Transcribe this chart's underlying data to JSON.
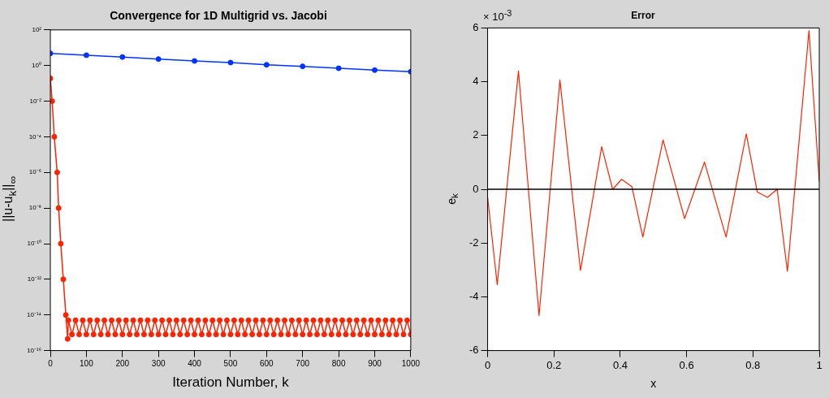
{
  "chart_data": [
    {
      "type": "line",
      "title": "Convergence for 1D Multigrid vs. Jacobi",
      "xlabel": "Iteration Number, k",
      "ylabel": "||u-u$_{k}$||$_{∞}$",
      "log": "y",
      "marker": "circle",
      "grid": false,
      "xlim": [
        0,
        1000
      ],
      "xticks": [
        0,
        100,
        200,
        300,
        400,
        500,
        600,
        700,
        800,
        900,
        1000
      ],
      "ylim": [
        1e-16,
        100
      ],
      "yticks": [
        {
          "value": 1e-16,
          "label": "10⁻¹⁶"
        },
        {
          "value": 1e-14,
          "label": "10⁻¹⁴"
        },
        {
          "value": 1e-12,
          "label": "10⁻¹²"
        },
        {
          "value": 1e-10,
          "label": "10⁻¹⁰"
        },
        {
          "value": 1e-08,
          "label": "10⁻⁸"
        },
        {
          "value": 1e-06,
          "label": "10⁻⁶"
        },
        {
          "value": 0.0001,
          "label": "10⁻⁴"
        },
        {
          "value": 0.01,
          "label": "10⁻²"
        },
        {
          "value": 1,
          "label": "10⁰"
        },
        {
          "value": 100,
          "label": "10²"
        }
      ],
      "series": [
        {
          "color": "#0033ff",
          "x": [
            0,
            100,
            200,
            300,
            400,
            500,
            600,
            700,
            800,
            900,
            1000
          ],
          "values": [
            4.8,
            3.8,
            3.0,
            2.3,
            1.8,
            1.46,
            1.1,
            0.9,
            0.7,
            0.55,
            0.45
          ]
        },
        {
          "color": "#ff2200",
          "x": [
            0,
            5,
            11,
            19,
            23,
            29,
            36,
            43,
            48,
            50,
            60,
            70,
            80,
            90,
            100,
            110,
            120,
            130,
            140,
            150,
            160,
            170,
            180,
            190,
            200,
            210,
            220,
            230,
            240,
            250,
            260,
            270,
            280,
            290,
            300,
            310,
            320,
            330,
            340,
            350,
            360,
            370,
            380,
            390,
            400,
            410,
            420,
            430,
            440,
            450,
            460,
            470,
            480,
            490,
            500,
            510,
            520,
            530,
            540,
            550,
            560,
            570,
            580,
            590,
            600,
            610,
            620,
            630,
            640,
            650,
            660,
            670,
            680,
            690,
            700,
            710,
            720,
            730,
            740,
            750,
            760,
            770,
            780,
            790,
            800,
            810,
            820,
            830,
            840,
            850,
            860,
            870,
            880,
            890,
            900,
            910,
            920,
            930,
            940,
            950,
            960,
            970,
            980,
            990,
            1000
          ],
          "values": [
            0.19,
            0.01,
            0.0001,
            1e-06,
            1e-08,
            1e-10,
            1e-12,
            1e-14,
            4.5e-16,
            5e-15,
            8e-16,
            5e-15,
            8e-16,
            5e-15,
            8e-16,
            5e-15,
            8e-16,
            5e-15,
            8e-16,
            5e-15,
            8e-16,
            5e-15,
            8e-16,
            5e-15,
            8e-16,
            5e-15,
            8e-16,
            5e-15,
            8e-16,
            5e-15,
            8e-16,
            5e-15,
            8e-16,
            5e-15,
            8e-16,
            5e-15,
            8e-16,
            5e-15,
            8e-16,
            5e-15,
            8e-16,
            5e-15,
            8e-16,
            5e-15,
            8e-16,
            5e-15,
            8e-16,
            5e-15,
            8e-16,
            5e-15,
            8e-16,
            5e-15,
            8e-16,
            5e-15,
            8e-16,
            5e-15,
            8e-16,
            5e-15,
            8e-16,
            5e-15,
            8e-16,
            5e-15,
            8e-16,
            5e-15,
            8e-16,
            5e-15,
            8e-16,
            5e-15,
            8e-16,
            5e-15,
            8e-16,
            5e-15,
            8e-16,
            5e-15,
            8e-16,
            5e-15,
            8e-16,
            5e-15,
            8e-16,
            5e-15,
            8e-16,
            5e-15,
            8e-16,
            5e-15,
            8e-16,
            5e-15,
            8e-16,
            5e-15,
            8e-16,
            5e-15,
            8e-16,
            5e-15,
            8e-16,
            5e-15,
            8e-16,
            5e-15,
            8e-16,
            5e-15,
            8e-16,
            5e-15,
            8e-16,
            5e-15,
            8e-16,
            5e-15,
            8e-16
          ]
        }
      ]
    },
    {
      "type": "line",
      "title": "Error",
      "xlabel": "x",
      "ylabel": "e$_{k}$",
      "marker": "none",
      "grid": false,
      "annotations": [
        "× 10$^{-3}$"
      ],
      "xlim": [
        0,
        1
      ],
      "xticks": [
        0,
        0.2,
        0.4,
        0.6,
        0.8,
        1
      ],
      "ylim": [
        -6,
        6
      ],
      "yticks": [
        -6,
        -4,
        -2,
        0,
        2,
        4,
        6
      ],
      "ref_lines": [
        {
          "axis": "y",
          "value": 0,
          "color": "#000000"
        }
      ],
      "series": [
        {
          "color": "#ff2200",
          "x": [
            0,
            0.029,
            0.093,
            0.155,
            0.218,
            0.28,
            0.344,
            0.377,
            0.404,
            0.435,
            0.468,
            0.529,
            0.594,
            0.654,
            0.719,
            0.78,
            0.813,
            0.844,
            0.873,
            0.904,
            0.969,
            1
          ],
          "values": [
            -0.3,
            -3.55,
            4.4,
            -4.7,
            4.06,
            -3.02,
            1.58,
            0,
            0.37,
            0.1,
            -1.78,
            1.83,
            -1.09,
            1.01,
            -1.78,
            2.06,
            -0.1,
            -0.3,
            0,
            -3.05,
            5.9,
            0.3
          ]
        }
      ]
    }
  ]
}
